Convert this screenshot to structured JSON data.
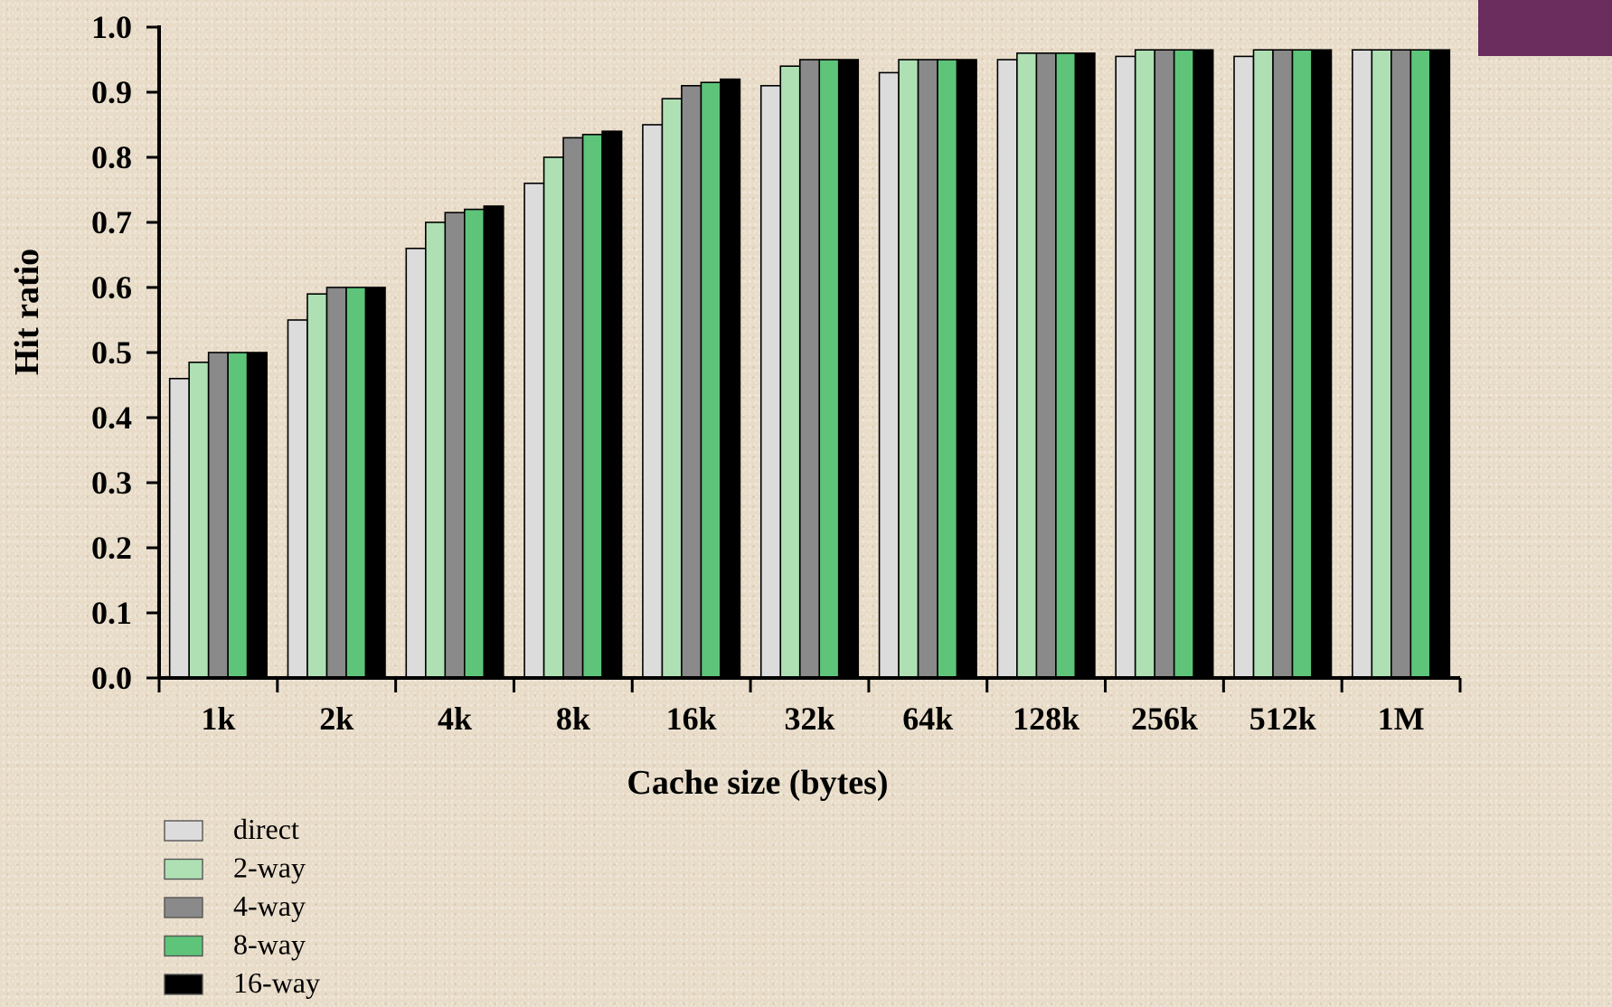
{
  "decoration": {
    "corner_color": "#6a2d5e"
  },
  "chart_data": {
    "type": "bar",
    "xlabel": "Cache size (bytes)",
    "ylabel": "Hit ratio",
    "ylim": [
      0.0,
      1.0
    ],
    "yticks": [
      "0.0",
      "0.1",
      "0.2",
      "0.3",
      "0.4",
      "0.5",
      "0.6",
      "0.7",
      "0.8",
      "0.9",
      "1.0"
    ],
    "categories": [
      "1k",
      "2k",
      "4k",
      "8k",
      "16k",
      "32k",
      "64k",
      "128k",
      "256k",
      "512k",
      "1M"
    ],
    "legend_position": "bottom-left",
    "grid": false,
    "series": [
      {
        "name": "direct",
        "color": "#dcdcdc",
        "values": [
          0.46,
          0.55,
          0.66,
          0.76,
          0.85,
          0.91,
          0.93,
          0.95,
          0.955,
          0.955,
          0.965
        ]
      },
      {
        "name": "2-way",
        "color": "#aee0b4",
        "values": [
          0.485,
          0.59,
          0.7,
          0.8,
          0.89,
          0.94,
          0.95,
          0.96,
          0.965,
          0.965,
          0.965
        ]
      },
      {
        "name": "4-way",
        "color": "#8a8a8a",
        "values": [
          0.5,
          0.6,
          0.715,
          0.83,
          0.91,
          0.95,
          0.95,
          0.96,
          0.965,
          0.965,
          0.965
        ]
      },
      {
        "name": "8-way",
        "color": "#5ec47a",
        "values": [
          0.5,
          0.6,
          0.72,
          0.835,
          0.915,
          0.95,
          0.95,
          0.96,
          0.965,
          0.965,
          0.965
        ]
      },
      {
        "name": "16-way",
        "color": "#000000",
        "values": [
          0.5,
          0.6,
          0.725,
          0.84,
          0.92,
          0.95,
          0.95,
          0.96,
          0.965,
          0.965,
          0.965
        ]
      }
    ]
  }
}
